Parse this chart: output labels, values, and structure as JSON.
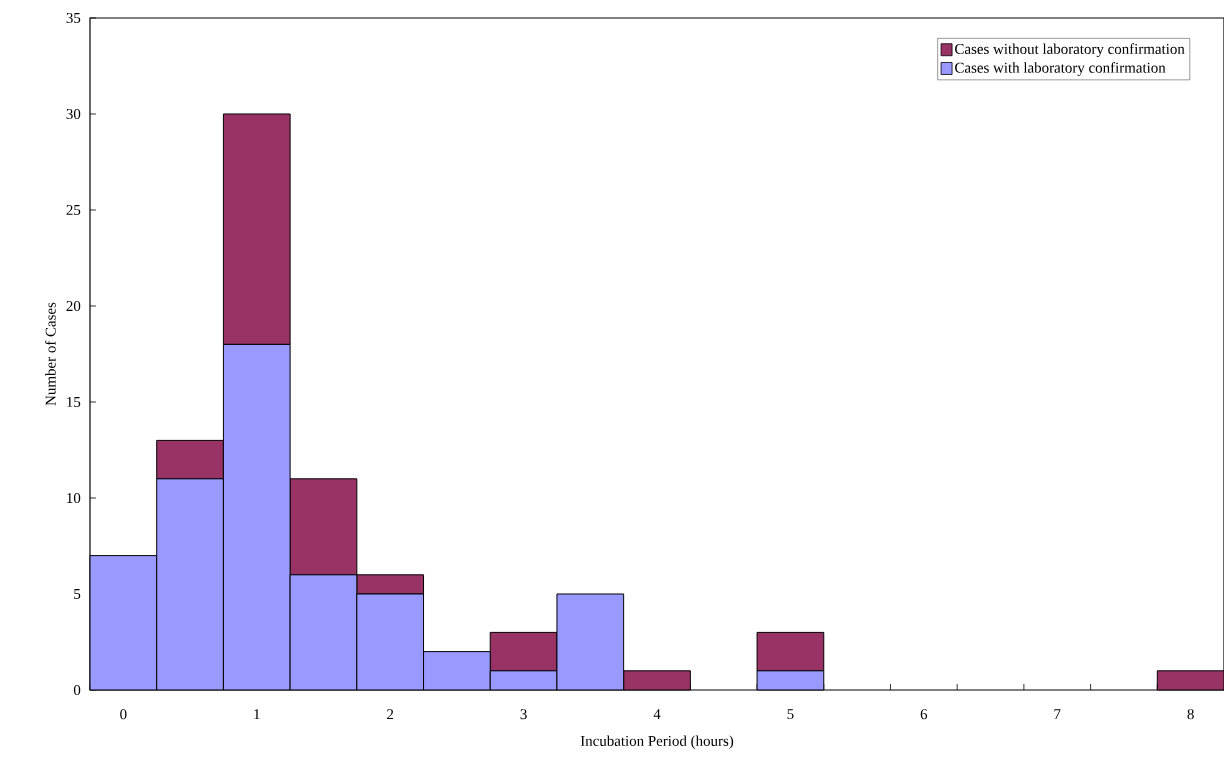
{
  "chart_data": {
    "type": "bar",
    "stacked": true,
    "xlabel": "Incubation Period (hours)",
    "ylabel": "Number of Cases",
    "categories": [
      "0",
      null,
      "1",
      null,
      "2",
      null,
      "3",
      null,
      "4",
      null,
      "5",
      null,
      "6",
      null,
      "7",
      null,
      "8"
    ],
    "series": [
      {
        "name": "Cases with laboratory confirmation",
        "color": "#9999ff",
        "values": [
          7,
          11,
          18,
          6,
          5,
          2,
          1,
          5,
          0,
          0,
          1,
          0,
          0,
          0,
          0,
          0,
          0
        ]
      },
      {
        "name": "Cases without laboratory confirmation",
        "color": "#993366",
        "values": [
          0,
          2,
          12,
          5,
          1,
          0,
          2,
          0,
          1,
          0,
          2,
          0,
          0,
          0,
          0,
          0,
          1
        ]
      }
    ],
    "ylim": [
      0,
      35
    ],
    "yticks": [
      0,
      5,
      10,
      15,
      20,
      25,
      30,
      35
    ],
    "grid": false,
    "legend": "top right"
  }
}
